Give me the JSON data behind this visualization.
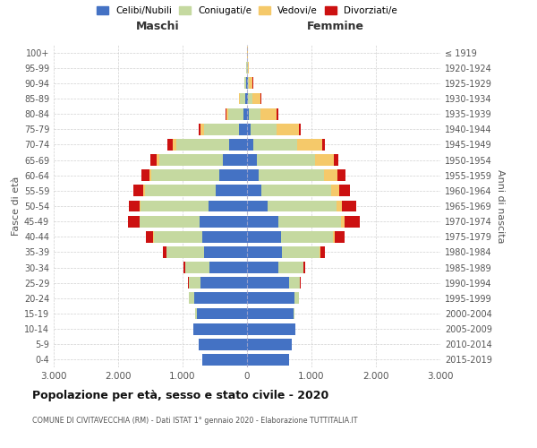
{
  "age_groups": [
    "0-4",
    "5-9",
    "10-14",
    "15-19",
    "20-24",
    "25-29",
    "30-34",
    "35-39",
    "40-44",
    "45-49",
    "50-54",
    "55-59",
    "60-64",
    "65-69",
    "70-74",
    "75-79",
    "80-84",
    "85-89",
    "90-94",
    "95-99",
    "100+"
  ],
  "birth_years": [
    "2015-2019",
    "2010-2014",
    "2005-2009",
    "2000-2004",
    "1995-1999",
    "1990-1994",
    "1985-1989",
    "1980-1984",
    "1975-1979",
    "1970-1974",
    "1965-1969",
    "1960-1964",
    "1955-1959",
    "1950-1954",
    "1945-1949",
    "1940-1944",
    "1935-1939",
    "1930-1934",
    "1925-1929",
    "1920-1924",
    "≤ 1919"
  ],
  "maschi": {
    "celibi": [
      700,
      750,
      830,
      780,
      820,
      720,
      580,
      670,
      690,
      730,
      600,
      490,
      430,
      380,
      280,
      120,
      60,
      30,
      15,
      5,
      2
    ],
    "coniugati": [
      0,
      0,
      10,
      30,
      80,
      180,
      380,
      580,
      760,
      930,
      1050,
      1100,
      1050,
      980,
      820,
      550,
      230,
      80,
      20,
      5,
      2
    ],
    "vedovi": [
      0,
      0,
      0,
      0,
      0,
      0,
      0,
      0,
      5,
      5,
      10,
      20,
      30,
      40,
      50,
      50,
      30,
      15,
      5,
      2,
      0
    ],
    "divorziati": [
      0,
      0,
      0,
      0,
      5,
      10,
      30,
      60,
      120,
      180,
      180,
      160,
      130,
      100,
      80,
      30,
      10,
      5,
      2,
      0,
      0
    ]
  },
  "femmine": {
    "nubili": [
      650,
      700,
      750,
      720,
      730,
      650,
      490,
      540,
      530,
      480,
      320,
      220,
      180,
      150,
      100,
      60,
      30,
      20,
      10,
      5,
      2
    ],
    "coniugate": [
      0,
      0,
      5,
      20,
      70,
      170,
      380,
      590,
      800,
      980,
      1070,
      1080,
      1020,
      900,
      680,
      400,
      180,
      60,
      20,
      8,
      2
    ],
    "vedove": [
      0,
      0,
      0,
      0,
      0,
      0,
      5,
      15,
      30,
      50,
      80,
      130,
      200,
      300,
      380,
      350,
      250,
      130,
      60,
      15,
      3
    ],
    "divorziate": [
      0,
      0,
      0,
      0,
      5,
      10,
      30,
      70,
      150,
      240,
      220,
      170,
      130,
      70,
      50,
      30,
      20,
      10,
      5,
      2,
      0
    ]
  },
  "colors": {
    "celibi": "#4472C4",
    "coniugati": "#c5d9a0",
    "vedovi": "#f5c96a",
    "divorziati": "#cc1111"
  },
  "title": "Popolazione per età, sesso e stato civile - 2020",
  "subtitle": "COMUNE DI CIVITAVECCHIA (RM) - Dati ISTAT 1° gennaio 2020 - Elaborazione TUTTITALIA.IT",
  "xlabel_left": "Maschi",
  "xlabel_right": "Femmine",
  "ylabel_left": "Fasce di età",
  "ylabel_right": "Anni di nascita",
  "xlim": 3000,
  "legend_labels": [
    "Celibi/Nubili",
    "Coniugati/e",
    "Vedovi/e",
    "Divorziati/e"
  ],
  "background_color": "#ffffff",
  "grid_color": "#cccccc"
}
